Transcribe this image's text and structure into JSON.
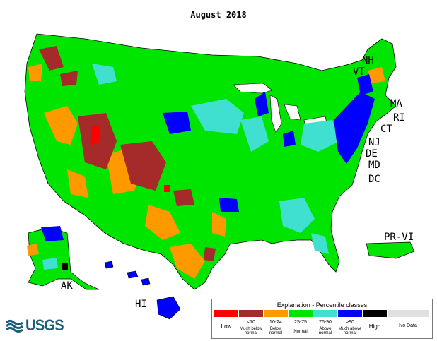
{
  "title": "August 2018",
  "state_labels": {
    "nh": "NH",
    "vt": "VT",
    "ma": "MA",
    "ri": "RI",
    "ct": "CT",
    "nj": "NJ",
    "de": "DE",
    "md": "MD",
    "dc": "DC",
    "pr_vi": "PR-VI",
    "ak": "AK",
    "hi": "HI"
  },
  "logo_text": "USGS",
  "legend": {
    "title": "Explanation - Percentile classes",
    "low_label": "Low",
    "high_label": "High",
    "no_data_label": "No Data",
    "classes": [
      {
        "range": "<10",
        "description": "Much below normal",
        "color": "#a52a2a"
      },
      {
        "range": "10-24",
        "description": "Below normal",
        "color": "#ff9900"
      },
      {
        "range": "25-75",
        "description": "Normal",
        "color": "#00e500"
      },
      {
        "range": "76-90",
        "description": "Above normal",
        "color": "#40e0d0"
      },
      {
        "range": ">90",
        "description": "Much above normal",
        "color": "#0000ff"
      }
    ],
    "colors": {
      "low": "#ff0000",
      "high": "#000000",
      "no_data": "#e0e0e0"
    }
  }
}
